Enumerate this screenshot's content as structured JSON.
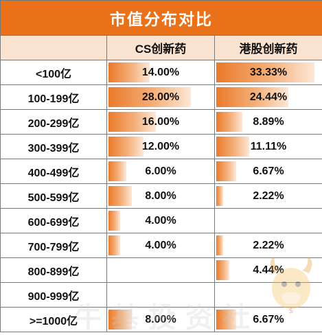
{
  "title": "市值分布对比",
  "columns": [
    "CS创新药",
    "港股创新药"
  ],
  "colors": {
    "header_bg": "#e8711a",
    "subheader_bg": "#fbe3d1",
    "bar": "#ea7a2a"
  },
  "rows": [
    {
      "label": "<100亿",
      "cs": "14.00%",
      "cs_value": 14.0,
      "hk": "33.33%",
      "hk_value": 33.33
    },
    {
      "label": "100-199亿",
      "cs": "28.00%",
      "cs_value": 28.0,
      "hk": "24.44%",
      "hk_value": 24.44
    },
    {
      "label": "200-299亿",
      "cs": "16.00%",
      "cs_value": 16.0,
      "hk": "8.89%",
      "hk_value": 8.89
    },
    {
      "label": "300-399亿",
      "cs": "12.00%",
      "cs_value": 12.0,
      "hk": "11.11%",
      "hk_value": 11.11
    },
    {
      "label": "400-499亿",
      "cs": "6.00%",
      "cs_value": 6.0,
      "hk": "6.67%",
      "hk_value": 6.67
    },
    {
      "label": "500-599亿",
      "cs": "8.00%",
      "cs_value": 8.0,
      "hk": "2.22%",
      "hk_value": 2.22
    },
    {
      "label": "600-699亿",
      "cs": "4.00%",
      "cs_value": 4.0,
      "hk": "",
      "hk_value": 0
    },
    {
      "label": "700-799亿",
      "cs": "4.00%",
      "cs_value": 4.0,
      "hk": "2.22%",
      "hk_value": 2.22
    },
    {
      "label": "800-899亿",
      "cs": "",
      "cs_value": 0,
      "hk": "4.44%",
      "hk_value": 4.44
    },
    {
      "label": "900-999亿",
      "cs": "",
      "cs_value": 0,
      "hk": "",
      "hk_value": 0
    },
    {
      "label": ">=1000亿",
      "cs": "8.00%",
      "cs_value": 8.0,
      "hk": "6.67%",
      "hk_value": 6.67
    }
  ],
  "watermark": "牛基投资社",
  "mascot_icon": "bull-mascot-icon"
}
